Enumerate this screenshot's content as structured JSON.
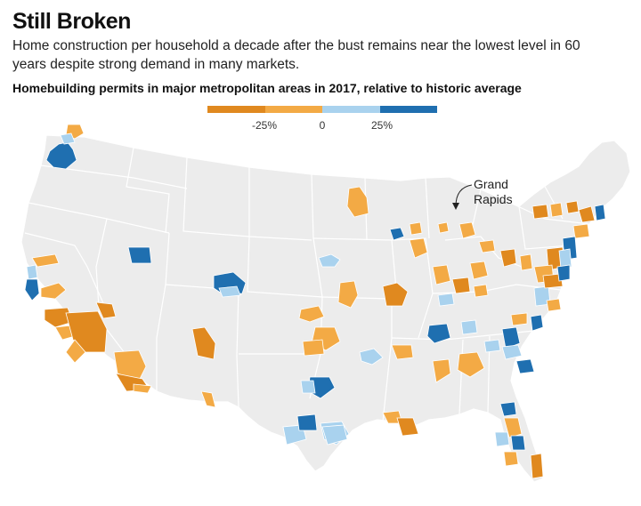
{
  "title": "Still Broken",
  "subtitle": "Home construction per household a decade after the bust remains near the lowest level in 60 years despite strong demand in many markets.",
  "chart_title": "Homebuilding permits in major metropolitan areas in 2017, relative to historic average",
  "legend": {
    "labels": [
      "-25%",
      "0",
      "25%"
    ],
    "colors": [
      "#e0891f",
      "#f3aa45",
      "#a9d2ee",
      "#1f6fb0"
    ]
  },
  "annotation": {
    "line1": "Grand",
    "line2": "Rapids"
  },
  "colors": {
    "land": "#ececec",
    "border": "#ffffff",
    "strong_below": "#e0891f",
    "below": "#f3aa45",
    "above": "#a9d2ee",
    "strong_above": "#1f6fb0"
  }
}
